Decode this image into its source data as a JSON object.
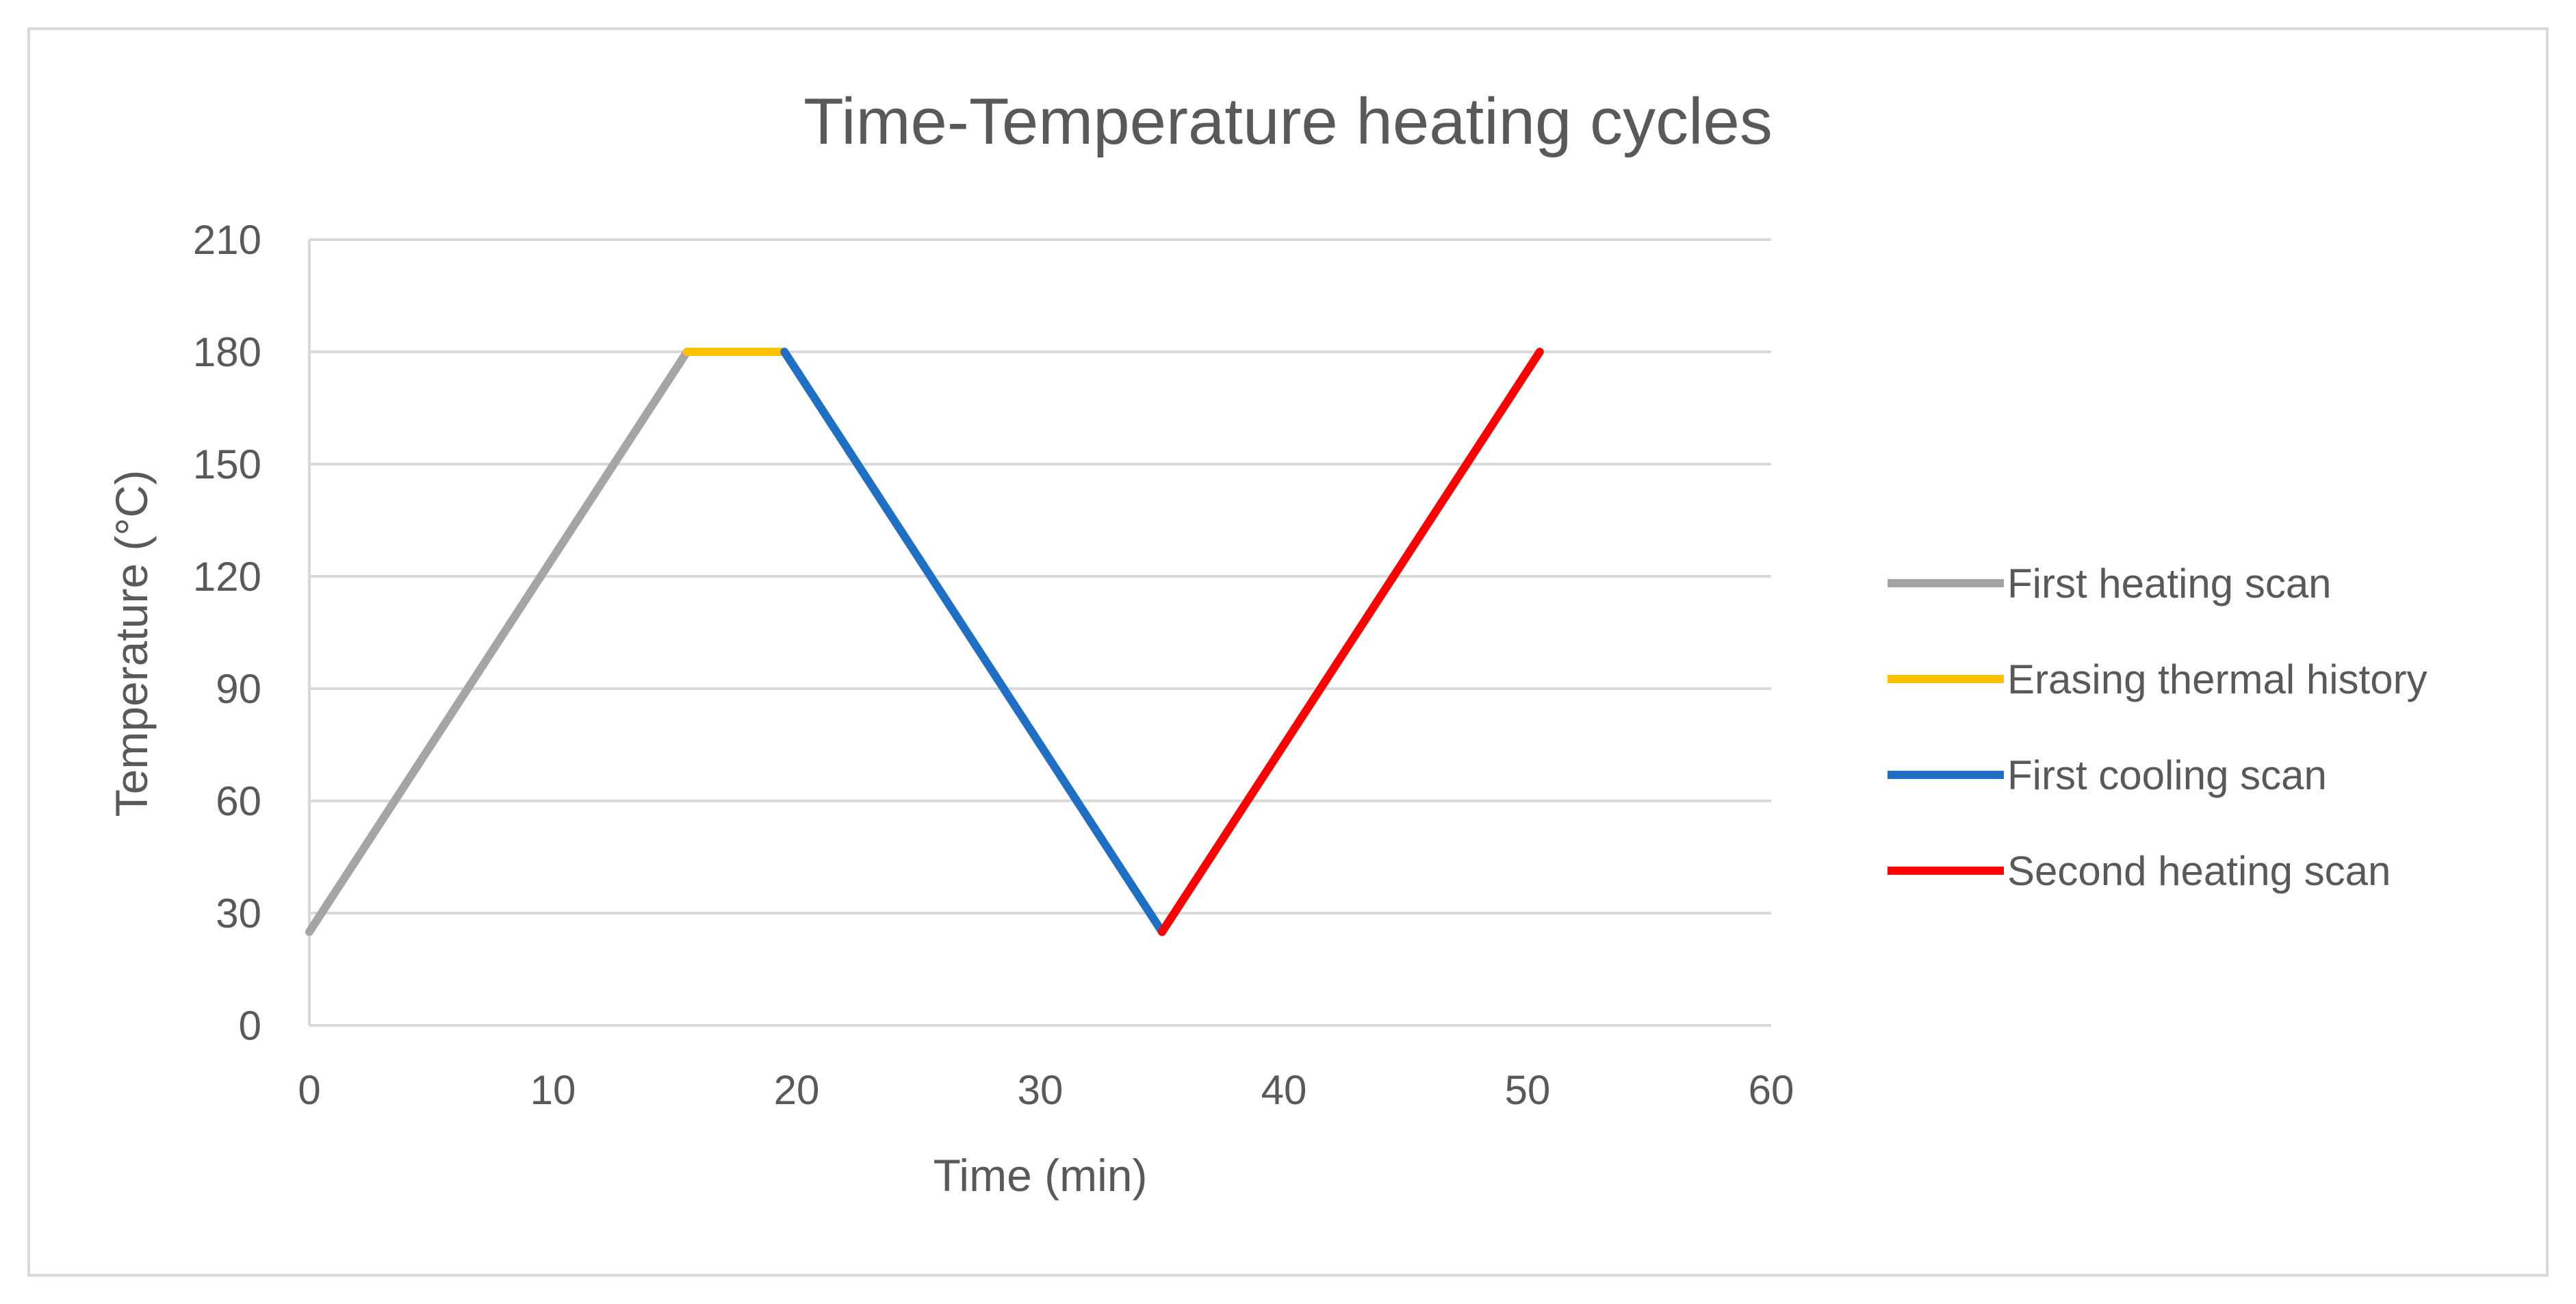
{
  "chart_data": {
    "type": "line",
    "title": "Time-Temperature heating cycles",
    "xlabel": "Time (min)",
    "ylabel": "Temperature (°C)",
    "xlim": [
      0,
      60
    ],
    "ylim": [
      0,
      210
    ],
    "xticks": [
      0,
      10,
      20,
      30,
      40,
      50,
      60
    ],
    "yticks": [
      0,
      30,
      60,
      90,
      120,
      150,
      180,
      210
    ],
    "grid": "horizontal",
    "legend_position": "right",
    "series": [
      {
        "name": "First heating scan",
        "color": "#a5a5a5",
        "x": [
          0,
          15.5
        ],
        "y": [
          25,
          180
        ]
      },
      {
        "name": "Erasing thermal history",
        "color": "#ffc000",
        "x": [
          15.5,
          19.5
        ],
        "y": [
          180,
          180
        ]
      },
      {
        "name": "First cooling scan",
        "color": "#1f6fc4",
        "x": [
          19.5,
          35
        ],
        "y": [
          180,
          25
        ]
      },
      {
        "name": "Second heating scan",
        "color": "#ff0000",
        "x": [
          35,
          50.5
        ],
        "y": [
          25,
          180
        ]
      }
    ]
  }
}
